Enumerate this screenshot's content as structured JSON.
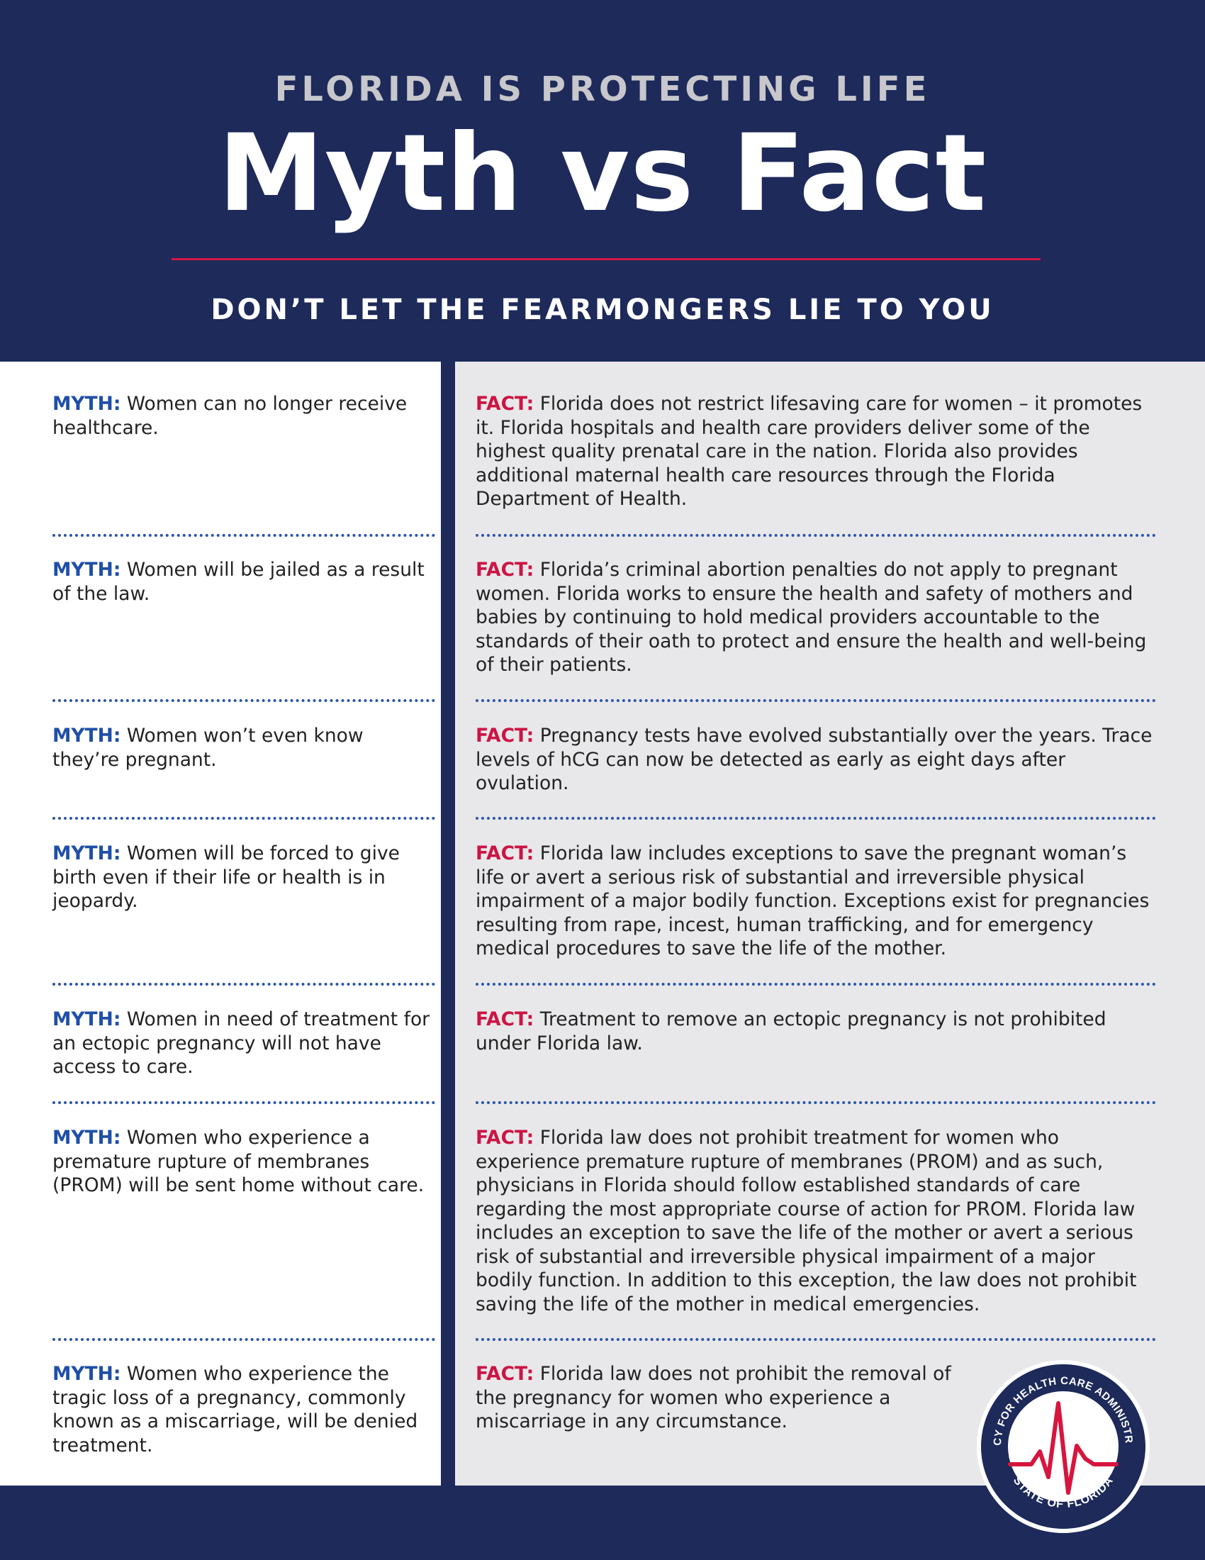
{
  "header": {
    "kicker": "FLORIDA IS PROTECTING LIFE",
    "title": "Myth vs Fact",
    "subtitle": "DON’T LET THE FEARMONGERS LIE TO YOU"
  },
  "labels": {
    "myth": "MYTH:",
    "fact": "FACT:"
  },
  "rows": [
    {
      "myth": "Women can no longer receive healthcare.",
      "fact": "Florida does not restrict lifesaving care for women – it promotes it. Florida hospitals and health care providers deliver some of the highest quality prenatal care in the nation. Florida also provides additional maternal health care resources through the Florida Department of Health."
    },
    {
      "myth": "Women will be jailed as a result of the law.",
      "fact": "Florida’s criminal abortion penalties do not apply to pregnant women. Florida works to ensure the health and safety of mothers and babies by continuing to hold medical providers accountable to the standards of their oath to protect and ensure the health and well-being of their patients."
    },
    {
      "myth": "Women won’t even know they’re pregnant.",
      "fact": "Pregnancy tests have evolved substantially over the years. Trace levels of hCG can now be detected as early as eight days after ovulation."
    },
    {
      "myth": "Women will be forced to give birth even if their life or health is in jeopardy.",
      "fact": "Florida law includes exceptions to save the pregnant woman’s life or avert a serious risk of substantial and irreversible physical impairment of a major bodily function. Exceptions exist for pregnancies resulting from rape, incest, human trafficking, and for emergency medical procedures to save the life of the mother."
    },
    {
      "myth": "Women in need of treatment for an ectopic pregnancy will not have access to care.",
      "fact": "Treatment to remove an ectopic pregnancy is not prohibited under Florida law."
    },
    {
      "myth": "Women who experience a premature rupture of membranes (PROM) will be sent home without care.",
      "fact": "Florida law does not prohibit treatment for women who experience premature rupture of membranes (PROM) and as such, physicians in Florida should follow established standards of care regarding the most appropriate course of action for PROM. Florida law includes an exception to save the life of the mother or avert a serious risk of substantial and irreversible physical impairment of a major bodily function. In addition to this exception, the law does not prohibit saving the life of the mother in medical emergencies."
    },
    {
      "myth": "Women who experience the tragic loss of a pregnancy, commonly known as a miscarriage, will be denied treatment.",
      "fact": "Florida law does not prohibit the removal of the pregnancy for women who experience a miscarriage in any circumstance."
    }
  ],
  "seal": {
    "top_text": "AGENCY FOR HEALTH CARE ADMINISTRATION",
    "bottom_text": "STATE OF FLORIDA",
    "colors": {
      "navy": "#1d2a5a",
      "red": "#d6163e"
    }
  }
}
